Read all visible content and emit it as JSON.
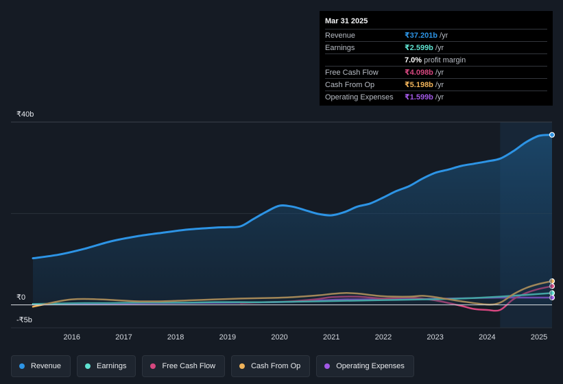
{
  "tooltip": {
    "date": "Mar 31 2025",
    "rows": [
      {
        "label": "Revenue",
        "value": "₹37.201b",
        "unit": "/yr",
        "color": "#2d94e5"
      },
      {
        "label": "Earnings",
        "value": "₹2.599b",
        "unit": "/yr",
        "color": "#5fe2d1"
      },
      {
        "label": "",
        "value": "7.0%",
        "unit": "profit margin",
        "color": "#ffffff"
      },
      {
        "label": "Free Cash Flow",
        "value": "₹4.098b",
        "unit": "/yr",
        "color": "#d6477f"
      },
      {
        "label": "Cash From Op",
        "value": "₹5.198b",
        "unit": "/yr",
        "color": "#f0b35a"
      },
      {
        "label": "Operating Expenses",
        "value": "₹1.599b",
        "unit": "/yr",
        "color": "#a259e6"
      }
    ]
  },
  "legend": [
    {
      "label": "Revenue",
      "color": "#2d94e5"
    },
    {
      "label": "Earnings",
      "color": "#5fe2d1"
    },
    {
      "label": "Free Cash Flow",
      "color": "#d6477f"
    },
    {
      "label": "Cash From Op",
      "color": "#f0b35a"
    },
    {
      "label": "Operating Expenses",
      "color": "#a259e6"
    }
  ],
  "chart_data": {
    "type": "line",
    "y_labels": {
      "top": "₹40b",
      "zero": "₹0",
      "bottom": "-₹5b"
    },
    "ylim": [
      -5,
      40
    ],
    "xlim": [
      2015.25,
      2025.25
    ],
    "x_ticks": [
      2016,
      2017,
      2018,
      2019,
      2020,
      2021,
      2022,
      2023,
      2024,
      2025
    ],
    "x_tick_labels": [
      "2016",
      "2017",
      "2018",
      "2019",
      "2020",
      "2021",
      "2022",
      "2023",
      "2024",
      "2025"
    ],
    "highlight_start": 2024.25,
    "series": [
      {
        "name": "Revenue",
        "color": "#2d94e5",
        "area": true,
        "x": [
          2015.25,
          2015.75,
          2016.25,
          2016.75,
          2017.25,
          2017.75,
          2018.25,
          2018.75,
          2019.0,
          2019.25,
          2019.5,
          2019.75,
          2020.0,
          2020.25,
          2020.5,
          2020.75,
          2021.0,
          2021.25,
          2021.5,
          2021.75,
          2022.0,
          2022.25,
          2022.5,
          2022.75,
          2023.0,
          2023.25,
          2023.5,
          2023.75,
          2024.0,
          2024.25,
          2024.5,
          2024.75,
          2025.0,
          2025.25
        ],
        "values": [
          10.2,
          11.0,
          12.3,
          13.9,
          15.0,
          15.8,
          16.5,
          16.9,
          17.0,
          17.2,
          18.8,
          20.4,
          21.7,
          21.5,
          20.7,
          19.9,
          19.6,
          20.3,
          21.5,
          22.2,
          23.5,
          24.9,
          26.0,
          27.6,
          28.9,
          29.6,
          30.4,
          30.9,
          31.4,
          32.0,
          33.6,
          35.6,
          37.0,
          37.2
        ]
      },
      {
        "name": "Earnings",
        "color": "#5fe2d1",
        "x": [
          2015.25,
          2015.75,
          2016.25,
          2016.75,
          2017.25,
          2017.75,
          2018.25,
          2018.75,
          2019.25,
          2019.75,
          2020.25,
          2020.75,
          2021.25,
          2021.75,
          2022.25,
          2022.75,
          2023.25,
          2023.75,
          2024.25,
          2024.75,
          2025.25
        ],
        "values": [
          0.2,
          0.3,
          0.4,
          0.4,
          0.5,
          0.5,
          0.5,
          0.6,
          0.6,
          0.6,
          0.7,
          0.8,
          0.9,
          1.0,
          1.1,
          1.2,
          1.3,
          1.5,
          1.8,
          2.2,
          2.6
        ]
      },
      {
        "name": "Free Cash Flow",
        "color": "#d6477f",
        "x": [
          2019.25,
          2019.75,
          2020.25,
          2020.75,
          2021.0,
          2021.5,
          2022.0,
          2022.5,
          2023.0,
          2023.5,
          2023.75,
          2024.0,
          2024.25,
          2024.5,
          2024.75,
          2025.0,
          2025.25
        ],
        "values": [
          0.4,
          0.6,
          0.8,
          1.3,
          1.7,
          1.8,
          1.4,
          1.6,
          1.0,
          -0.2,
          -0.9,
          -1.1,
          -1.1,
          1.2,
          2.6,
          3.5,
          4.1
        ]
      },
      {
        "name": "Cash From Op",
        "color": "#f0b35a",
        "x": [
          2015.25,
          2015.5,
          2015.75,
          2016.0,
          2016.25,
          2016.75,
          2017.25,
          2017.75,
          2018.25,
          2018.75,
          2019.25,
          2019.75,
          2020.25,
          2020.75,
          2021.0,
          2021.25,
          2021.5,
          2022.0,
          2022.5,
          2022.75,
          2023.0,
          2023.5,
          2024.0,
          2024.25,
          2024.5,
          2024.75,
          2025.0,
          2025.25
        ],
        "values": [
          -0.4,
          0.2,
          0.8,
          1.2,
          1.3,
          1.1,
          0.8,
          0.8,
          1.0,
          1.2,
          1.4,
          1.5,
          1.7,
          2.1,
          2.4,
          2.6,
          2.5,
          1.9,
          1.8,
          2.0,
          1.7,
          0.8,
          0.1,
          0.5,
          2.3,
          3.7,
          4.6,
          5.2
        ]
      },
      {
        "name": "Operating Expenses",
        "color": "#a259e6",
        "x": [
          2015.25,
          2016.25,
          2017.25,
          2018.25,
          2019.25,
          2020.25,
          2021.25,
          2022.25,
          2023.25,
          2023.75,
          2024.25,
          2024.75,
          2025.25
        ],
        "values": [
          0.1,
          0.2,
          0.3,
          0.4,
          0.5,
          0.7,
          1.2,
          1.2,
          1.4,
          1.5,
          1.6,
          1.6,
          1.6
        ]
      }
    ]
  }
}
